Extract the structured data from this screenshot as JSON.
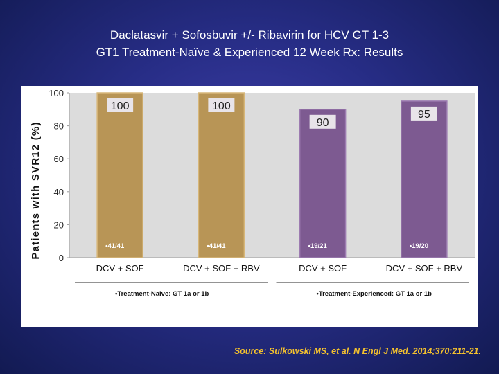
{
  "slide": {
    "title_line1": "Daclatasvir + Sofosbuvir +/- Ribavirin for HCV GT 1-3",
    "title_line2": "GT1 Treatment-Naïve & Experienced 12 Week Rx: Results",
    "source": "Source: Sulkowski MS, et al. N Engl J Med. 2014;370:211-21."
  },
  "colors": {
    "naive_bar": "#b89556",
    "naive_bar_edge": "#d7b77a",
    "experienced_bar": "#7d5a91",
    "experienced_bar_edge": "#9d7cb1",
    "plot_bg": "#dcdcdc",
    "value_box": "#e8e4e9"
  },
  "chart_data": {
    "type": "bar",
    "title": "",
    "ylabel": "Patients with SVR12 (%)",
    "xlabel": "",
    "ylim": [
      0,
      100
    ],
    "yticks": [
      0,
      20,
      40,
      60,
      80,
      100
    ],
    "grid": false,
    "categories": [
      "DCV + SOF",
      "DCV + SOF + RBV",
      "DCV + SOF",
      "DCV + SOF + RBV"
    ],
    "values": [
      100,
      100,
      90,
      95
    ],
    "value_labels": [
      "100",
      "100",
      "90",
      "95"
    ],
    "counts": [
      "•41/41",
      "•41/41",
      "•19/21",
      "•19/20"
    ],
    "groups": [
      {
        "label": "•Treatment-Naive: GT 1a or 1b",
        "bars": [
          0,
          1
        ],
        "color_key": "naive"
      },
      {
        "label": "•Treatment-Experienced: GT 1a or 1b",
        "bars": [
          2,
          3
        ],
        "color_key": "experienced"
      }
    ]
  }
}
